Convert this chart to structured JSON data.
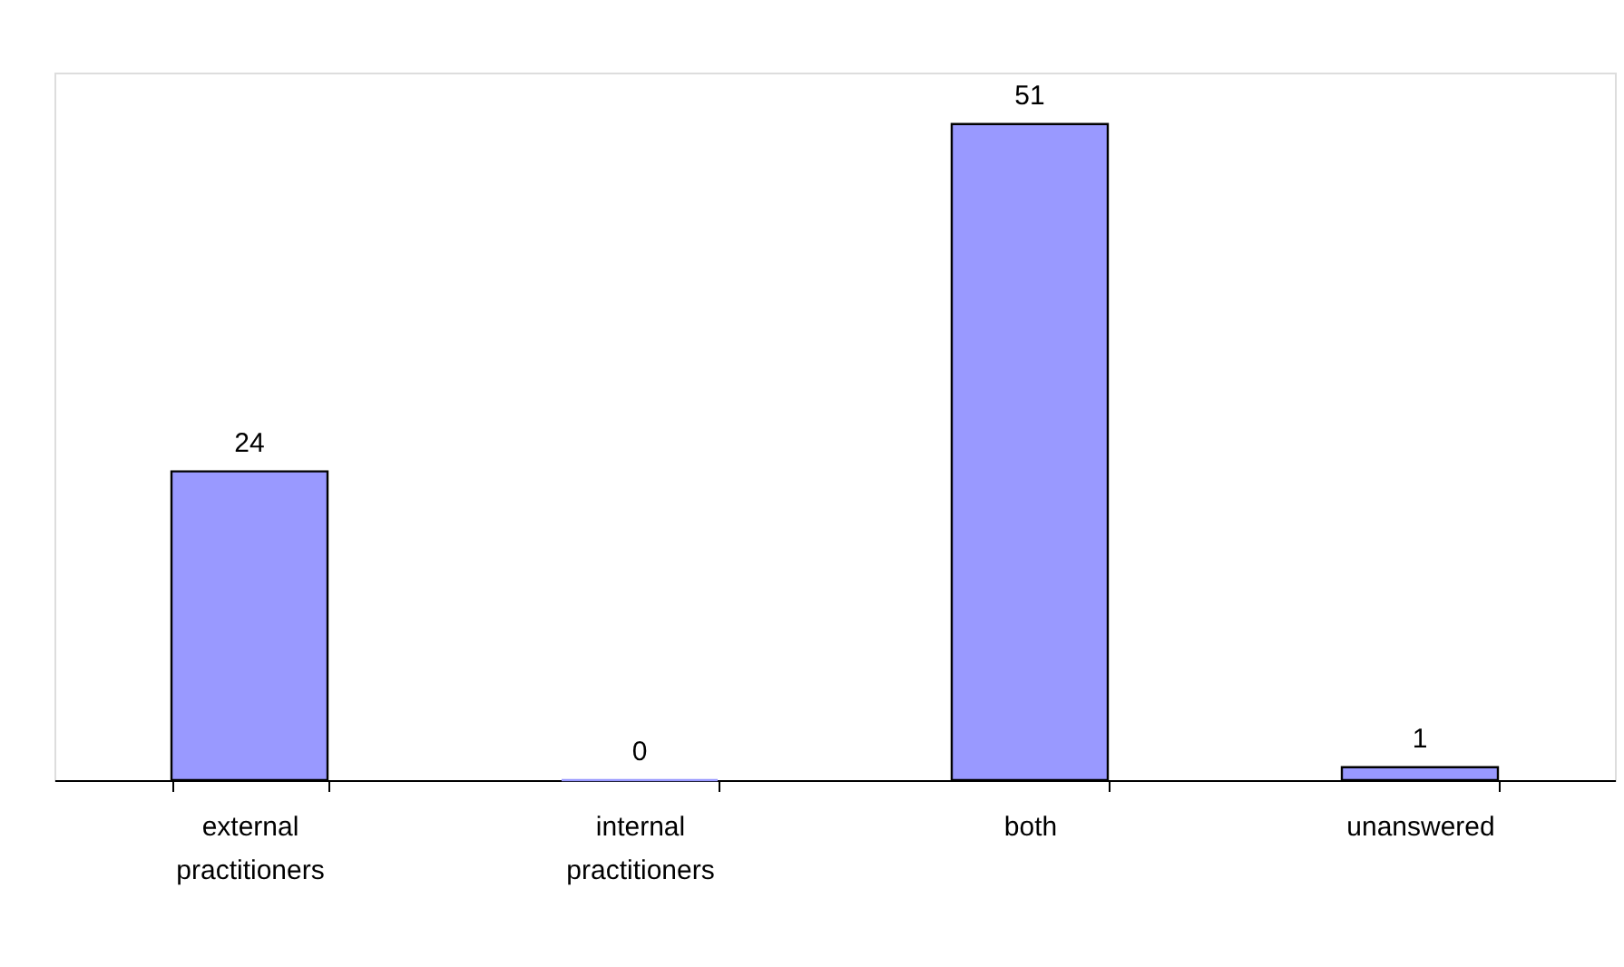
{
  "chart_data": {
    "type": "bar",
    "categories": [
      "external practitioners",
      "internal practitioners",
      "both",
      "unanswered"
    ],
    "values": [
      24,
      0,
      51,
      1
    ],
    "color": "#9999ff",
    "data_labels": true,
    "grid": false
  }
}
